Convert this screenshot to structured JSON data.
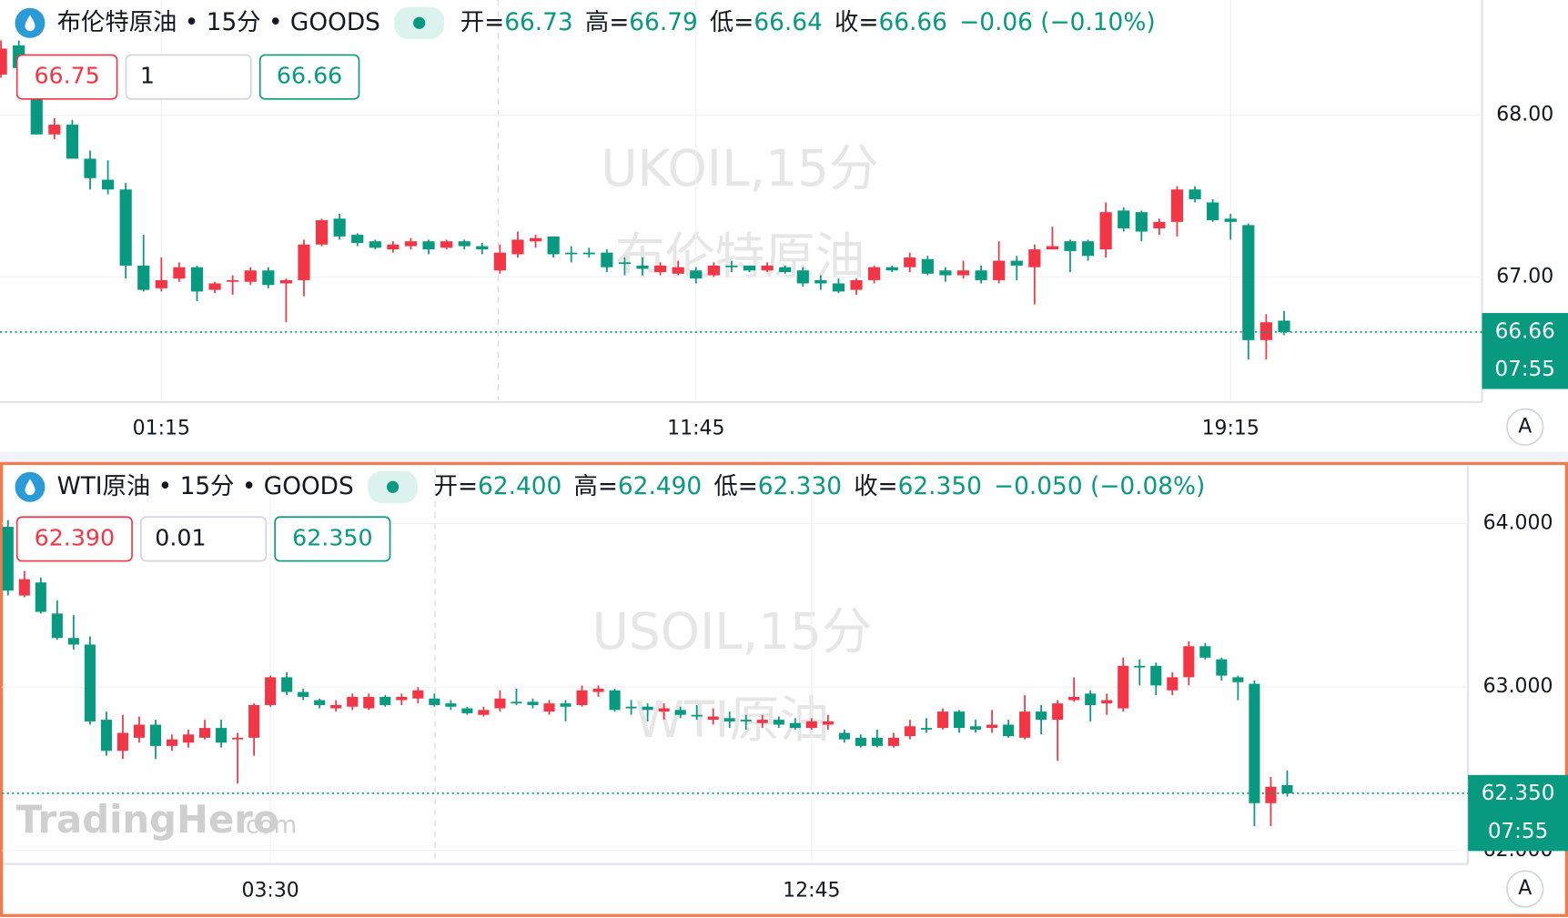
{
  "logo": {
    "name": "TradingHero",
    "suffix": ".com"
  },
  "chart_data": [
    {
      "type": "candlestick",
      "title": "布伦特原油 • 15分 • GOODS",
      "ohlc_legend": [
        {
          "key": "开=",
          "text": "66.73"
        },
        {
          "key": "高=",
          "text": "66.79"
        },
        {
          "key": "低=",
          "text": "66.64"
        },
        {
          "key": "收=",
          "text": "66.66"
        }
      ],
      "change": "−0.06 (−0.10%)",
      "order_panel": {
        "sell": "66.75",
        "quantity": "1",
        "buy": "66.66"
      },
      "watermark": [
        "UKOIL,15分",
        "布伦特原油"
      ],
      "last_price_label": "66.66",
      "countdown": "07:55",
      "scale_mode": "A",
      "up_color": "#f23645",
      "down_color": "#089981",
      "grid": true,
      "ylim": [
        66.24,
        68.71
      ],
      "yticks": [
        {
          "value": 68,
          "label": "68.00"
        },
        {
          "value": 67,
          "label": "67.00"
        }
      ],
      "categories": [
        null,
        null,
        null,
        null,
        null,
        null,
        null,
        null,
        null,
        "01:15",
        null,
        null,
        null,
        null,
        null,
        null,
        null,
        null,
        null,
        null,
        null,
        null,
        null,
        null,
        null,
        null,
        null,
        null,
        null,
        null,
        null,
        null,
        null,
        null,
        null,
        null,
        null,
        null,
        null,
        "11:45",
        null,
        null,
        null,
        null,
        null,
        null,
        null,
        null,
        null,
        null,
        null,
        null,
        null,
        null,
        null,
        null,
        null,
        null,
        null,
        null,
        null,
        null,
        null,
        null,
        null,
        null,
        null,
        null,
        null,
        "19:15",
        null,
        null,
        null
      ],
      "open": [
        68.25,
        68.43,
        68.28,
        67.88,
        67.94,
        67.73,
        67.6,
        67.54,
        67.07,
        66.93,
        66.99,
        67.06,
        66.92,
        66.97,
        66.97,
        67.04,
        66.96,
        66.98,
        67.2,
        67.36,
        67.26,
        67.22,
        67.17,
        67.19,
        67.22,
        67.18,
        67.22,
        67.19,
        67.04,
        67.14,
        67.22,
        67.25,
        67.15,
        67.15,
        67.15,
        67.09,
        67.07,
        67.03,
        67.02,
        67.04,
        67.01,
        67.07,
        67.07,
        67.04,
        67.06,
        67.04,
        66.98,
        66.96,
        66.92,
        66.98,
        67.06,
        67.06,
        67.11,
        67.04,
        67.01,
        67.04,
        66.98,
        67.1,
        67.06,
        67.17,
        67.22,
        67.22,
        67.17,
        67.41,
        67.4,
        67.3,
        67.34,
        67.54,
        67.46,
        67.36,
        67.32,
        66.61,
        66.73
      ],
      "high": [
        68.46,
        68.46,
        68.34,
        67.98,
        67.97,
        67.78,
        67.72,
        67.58,
        67.26,
        67.12,
        67.09,
        67.07,
        66.97,
        67.01,
        67.06,
        67.06,
        66.99,
        67.23,
        67.36,
        67.39,
        67.27,
        67.23,
        67.22,
        67.24,
        67.23,
        67.23,
        67.23,
        67.21,
        67.2,
        67.28,
        67.26,
        67.25,
        67.19,
        67.18,
        67.17,
        67.12,
        67.12,
        67.09,
        67.1,
        67.06,
        67.09,
        67.1,
        67.07,
        67.09,
        67.07,
        67.06,
        67.01,
        66.99,
        66.99,
        67.07,
        67.07,
        67.15,
        67.13,
        67.06,
        67.1,
        67.07,
        67.22,
        67.13,
        67.2,
        67.31,
        67.23,
        67.23,
        67.46,
        67.43,
        67.41,
        67.36,
        67.56,
        67.56,
        67.48,
        67.39,
        67.33,
        66.77,
        66.79
      ],
      "low": [
        68.23,
        68.28,
        67.88,
        67.85,
        67.73,
        67.54,
        67.51,
        66.99,
        66.91,
        66.91,
        66.97,
        66.85,
        66.9,
        66.89,
        66.95,
        66.93,
        66.72,
        66.88,
        67.19,
        67.23,
        67.19,
        67.17,
        67.15,
        67.17,
        67.14,
        67.17,
        67.17,
        67.14,
        67.02,
        67.12,
        67.18,
        67.12,
        67.09,
        67.12,
        67.03,
        67.01,
        67.01,
        67.01,
        67.01,
        66.96,
        67.0,
        67.03,
        67.03,
        67.03,
        67.02,
        66.94,
        66.92,
        66.9,
        66.89,
        66.96,
        67.03,
        67.03,
        67.01,
        66.97,
        66.99,
        66.96,
        66.96,
        66.98,
        66.83,
        67.17,
        67.03,
        67.1,
        67.12,
        67.28,
        67.22,
        67.26,
        67.25,
        67.46,
        67.34,
        67.23,
        66.49,
        66.49,
        66.64
      ],
      "close": [
        68.41,
        68.29,
        67.88,
        67.94,
        67.73,
        67.61,
        67.54,
        67.07,
        66.92,
        66.98,
        67.06,
        66.91,
        66.96,
        66.98,
        67.04,
        66.95,
        66.98,
        67.2,
        67.35,
        67.25,
        67.21,
        67.18,
        67.2,
        67.22,
        67.17,
        67.22,
        67.19,
        67.17,
        67.15,
        67.23,
        67.24,
        67.14,
        67.14,
        67.14,
        67.06,
        67.08,
        67.05,
        67.07,
        67.06,
        66.99,
        67.07,
        67.06,
        67.04,
        67.07,
        67.03,
        66.96,
        66.96,
        66.91,
        66.98,
        67.06,
        67.04,
        67.12,
        67.02,
        67.01,
        67.04,
        66.98,
        67.1,
        67.07,
        67.17,
        67.19,
        67.16,
        67.13,
        67.4,
        67.3,
        67.28,
        67.34,
        67.54,
        67.48,
        67.35,
        67.34,
        66.61,
        66.72,
        66.66
      ]
    },
    {
      "type": "candlestick",
      "title": "WTI原油 • 15分 • GOODS",
      "ohlc_legend": [
        {
          "key": "开=",
          "text": "62.400"
        },
        {
          "key": "高=",
          "text": "62.490"
        },
        {
          "key": "低=",
          "text": "62.330"
        },
        {
          "key": "收=",
          "text": "62.350"
        }
      ],
      "change": "−0.050 (−0.08%)",
      "order_panel": {
        "sell": "62.390",
        "quantity": "0.01",
        "buy": "62.350"
      },
      "watermark": [
        "USOIL,15分",
        "WTI原油"
      ],
      "last_price_label": "62.350",
      "countdown": "07:55",
      "scale_mode": "A",
      "up_color": "#f23645",
      "down_color": "#089981",
      "grid": true,
      "ylim": [
        61.93,
        64.34
      ],
      "yticks": [
        {
          "value": 64,
          "label": "64.000"
        },
        {
          "value": 63,
          "label": "63.000"
        },
        {
          "value": 62,
          "label": "62.000"
        }
      ],
      "categories": [
        null,
        null,
        null,
        null,
        null,
        null,
        null,
        null,
        null,
        null,
        null,
        null,
        null,
        null,
        null,
        null,
        "03:30",
        null,
        null,
        null,
        null,
        null,
        null,
        null,
        null,
        null,
        null,
        null,
        null,
        null,
        null,
        null,
        null,
        null,
        null,
        null,
        null,
        null,
        null,
        null,
        null,
        null,
        null,
        null,
        null,
        null,
        null,
        null,
        null,
        "12:45",
        null,
        null,
        null,
        null,
        null,
        null,
        null,
        null,
        null,
        null,
        null,
        null,
        null,
        null,
        null,
        null,
        null,
        null,
        null,
        null,
        null,
        null,
        null,
        null,
        null,
        null,
        null,
        null,
        null
      ],
      "open": [
        63.98,
        63.56,
        63.64,
        63.45,
        63.3,
        63.26,
        62.8,
        62.61,
        62.69,
        62.77,
        62.64,
        62.66,
        62.69,
        62.75,
        62.68,
        62.69,
        62.89,
        63.06,
        62.97,
        62.92,
        62.87,
        62.88,
        62.87,
        62.94,
        62.92,
        62.93,
        62.93,
        62.9,
        62.87,
        62.83,
        62.87,
        62.91,
        62.91,
        62.85,
        62.9,
        62.89,
        62.97,
        62.98,
        62.88,
        62.88,
        62.85,
        62.86,
        62.83,
        62.8,
        62.81,
        62.8,
        62.78,
        62.8,
        62.78,
        62.75,
        62.77,
        62.72,
        62.69,
        62.69,
        62.64,
        62.7,
        62.75,
        62.75,
        62.85,
        62.76,
        62.75,
        62.77,
        62.69,
        62.85,
        62.8,
        62.92,
        62.96,
        62.9,
        62.87,
        63.13,
        63.13,
        62.98,
        63.06,
        63.25,
        63.17,
        63.06,
        63.02,
        62.29,
        62.4
      ],
      "high": [
        64.02,
        63.71,
        63.67,
        63.53,
        63.44,
        63.31,
        62.85,
        62.83,
        62.82,
        62.8,
        62.71,
        62.74,
        62.8,
        62.8,
        62.72,
        62.9,
        63.07,
        63.09,
        62.99,
        62.93,
        62.92,
        62.96,
        62.96,
        62.95,
        62.96,
        63.0,
        62.96,
        62.92,
        62.88,
        62.88,
        62.98,
        62.99,
        62.93,
        62.92,
        62.92,
        63.01,
        63.01,
        62.99,
        62.92,
        62.9,
        62.9,
        62.88,
        62.89,
        62.87,
        62.85,
        62.83,
        62.83,
        62.82,
        62.81,
        62.81,
        62.83,
        62.74,
        62.71,
        62.74,
        62.72,
        62.8,
        62.81,
        62.87,
        62.86,
        62.8,
        62.86,
        62.8,
        62.95,
        62.89,
        62.92,
        63.06,
        62.98,
        62.96,
        63.18,
        63.17,
        63.15,
        63.09,
        63.28,
        63.27,
        63.18,
        63.07,
        63.04,
        62.45,
        62.49
      ],
      "low": [
        63.56,
        63.55,
        63.45,
        63.29,
        63.23,
        62.77,
        62.58,
        62.56,
        62.66,
        62.56,
        62.61,
        62.63,
        62.68,
        62.63,
        62.41,
        62.58,
        62.88,
        62.95,
        62.92,
        62.87,
        62.85,
        62.86,
        62.86,
        62.88,
        62.89,
        62.9,
        62.88,
        62.86,
        62.83,
        62.82,
        62.85,
        62.89,
        62.87,
        62.83,
        62.79,
        62.88,
        62.94,
        62.85,
        62.83,
        62.79,
        62.8,
        62.81,
        62.8,
        62.77,
        62.75,
        62.74,
        62.75,
        62.75,
        62.74,
        62.74,
        62.74,
        62.66,
        62.63,
        62.63,
        62.63,
        62.68,
        62.72,
        62.74,
        62.72,
        62.72,
        62.72,
        62.69,
        62.68,
        62.71,
        62.55,
        62.91,
        62.79,
        62.83,
        62.85,
        63.01,
        62.95,
        62.95,
        63.01,
        63.17,
        63.04,
        62.92,
        62.15,
        62.15,
        62.33
      ],
      "close": [
        63.59,
        63.66,
        63.46,
        63.3,
        63.26,
        62.79,
        62.61,
        62.72,
        62.77,
        62.64,
        62.68,
        62.71,
        62.75,
        62.66,
        62.69,
        62.89,
        63.06,
        62.97,
        62.94,
        62.89,
        62.89,
        62.94,
        62.94,
        62.89,
        62.94,
        62.98,
        62.89,
        62.88,
        62.84,
        62.86,
        62.93,
        62.9,
        62.89,
        62.9,
        62.88,
        62.98,
        62.99,
        62.86,
        62.87,
        62.86,
        62.87,
        62.83,
        62.82,
        62.82,
        62.79,
        62.79,
        62.8,
        62.77,
        62.75,
        62.79,
        62.79,
        62.68,
        62.64,
        62.64,
        62.69,
        62.76,
        62.74,
        62.85,
        62.75,
        62.74,
        62.77,
        62.7,
        62.85,
        62.8,
        62.9,
        62.94,
        62.89,
        62.92,
        63.13,
        63.12,
        63.01,
        63.06,
        63.25,
        63.18,
        63.07,
        63.03,
        62.29,
        62.39,
        62.35
      ]
    }
  ]
}
